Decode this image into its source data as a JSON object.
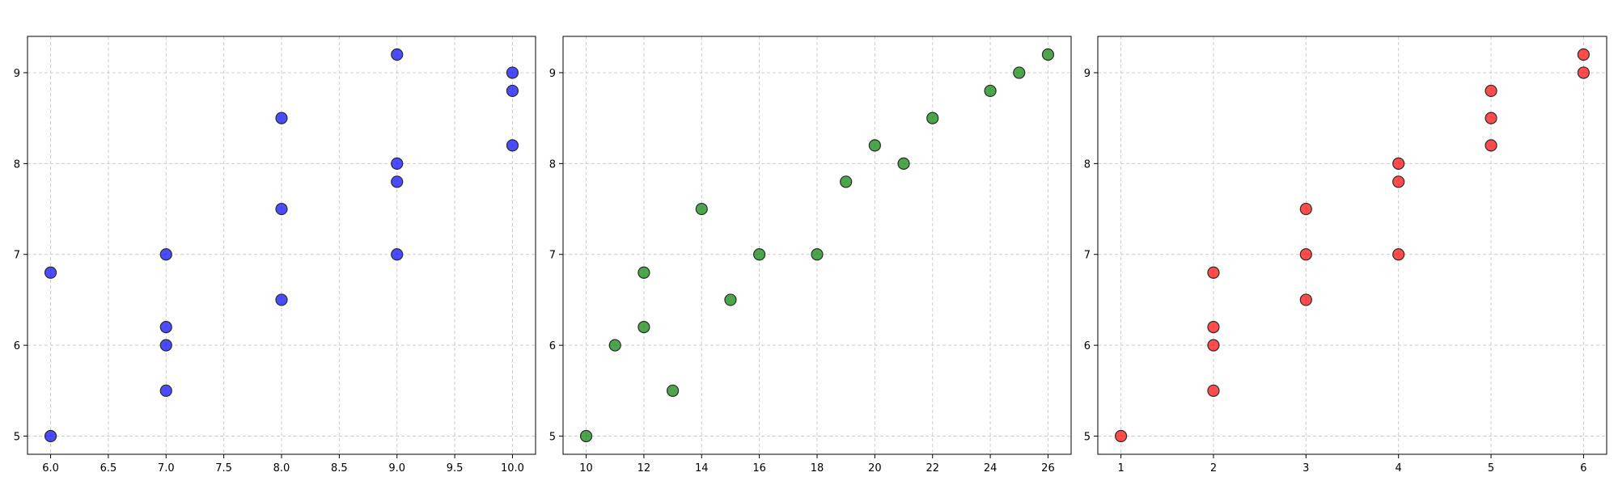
{
  "chart_data": [
    {
      "type": "scatter",
      "color": "#0000ff",
      "grid": true,
      "xlim": [
        5.8,
        10.2
      ],
      "ylim": [
        4.8,
        9.4
      ],
      "xticks": [
        "6.0",
        "6.5",
        "7.0",
        "7.5",
        "8.0",
        "8.5",
        "9.0",
        "9.5",
        "10.0"
      ],
      "yticks": [
        "5",
        "6",
        "7",
        "8",
        "9"
      ],
      "points": [
        {
          "x": 6,
          "y": 5.0
        },
        {
          "x": 6,
          "y": 6.8
        },
        {
          "x": 7,
          "y": 5.5
        },
        {
          "x": 7,
          "y": 6.0
        },
        {
          "x": 7,
          "y": 6.2
        },
        {
          "x": 7,
          "y": 7.0
        },
        {
          "x": 8,
          "y": 6.5
        },
        {
          "x": 8,
          "y": 7.5
        },
        {
          "x": 8,
          "y": 8.5
        },
        {
          "x": 9,
          "y": 7.0
        },
        {
          "x": 9,
          "y": 7.8
        },
        {
          "x": 9,
          "y": 8.0
        },
        {
          "x": 9,
          "y": 9.2
        },
        {
          "x": 10,
          "y": 8.2
        },
        {
          "x": 10,
          "y": 8.8
        },
        {
          "x": 10,
          "y": 9.0
        }
      ]
    },
    {
      "type": "scatter",
      "color": "#008000",
      "grid": true,
      "xlim": [
        9.2,
        26.8
      ],
      "ylim": [
        4.8,
        9.4
      ],
      "xticks": [
        "10",
        "12",
        "14",
        "16",
        "18",
        "20",
        "22",
        "24",
        "26"
      ],
      "yticks": [
        "5",
        "6",
        "7",
        "8",
        "9"
      ],
      "points": [
        {
          "x": 10,
          "y": 5.0
        },
        {
          "x": 11,
          "y": 6.0
        },
        {
          "x": 12,
          "y": 6.2
        },
        {
          "x": 12,
          "y": 6.8
        },
        {
          "x": 13,
          "y": 5.5
        },
        {
          "x": 14,
          "y": 7.5
        },
        {
          "x": 15,
          "y": 6.5
        },
        {
          "x": 16,
          "y": 7.0
        },
        {
          "x": 18,
          "y": 7.0
        },
        {
          "x": 19,
          "y": 7.8
        },
        {
          "x": 20,
          "y": 8.2
        },
        {
          "x": 21,
          "y": 8.0
        },
        {
          "x": 22,
          "y": 8.5
        },
        {
          "x": 24,
          "y": 8.8
        },
        {
          "x": 25,
          "y": 9.0
        },
        {
          "x": 26,
          "y": 9.2
        }
      ]
    },
    {
      "type": "scatter",
      "color": "#ff0000",
      "grid": true,
      "xlim": [
        0.75,
        6.25
      ],
      "ylim": [
        4.8,
        9.4
      ],
      "xticks": [
        "1",
        "2",
        "3",
        "4",
        "5",
        "6"
      ],
      "yticks": [
        "5",
        "6",
        "7",
        "8",
        "9"
      ],
      "points": [
        {
          "x": 1,
          "y": 5.0
        },
        {
          "x": 2,
          "y": 5.5
        },
        {
          "x": 2,
          "y": 6.0
        },
        {
          "x": 2,
          "y": 6.2
        },
        {
          "x": 2,
          "y": 6.8
        },
        {
          "x": 3,
          "y": 6.5
        },
        {
          "x": 3,
          "y": 7.0
        },
        {
          "x": 3,
          "y": 7.5
        },
        {
          "x": 4,
          "y": 7.0
        },
        {
          "x": 4,
          "y": 7.8
        },
        {
          "x": 4,
          "y": 8.0
        },
        {
          "x": 5,
          "y": 8.2
        },
        {
          "x": 5,
          "y": 8.5
        },
        {
          "x": 5,
          "y": 8.8
        },
        {
          "x": 6,
          "y": 9.0
        },
        {
          "x": 6,
          "y": 9.2
        }
      ]
    }
  ]
}
